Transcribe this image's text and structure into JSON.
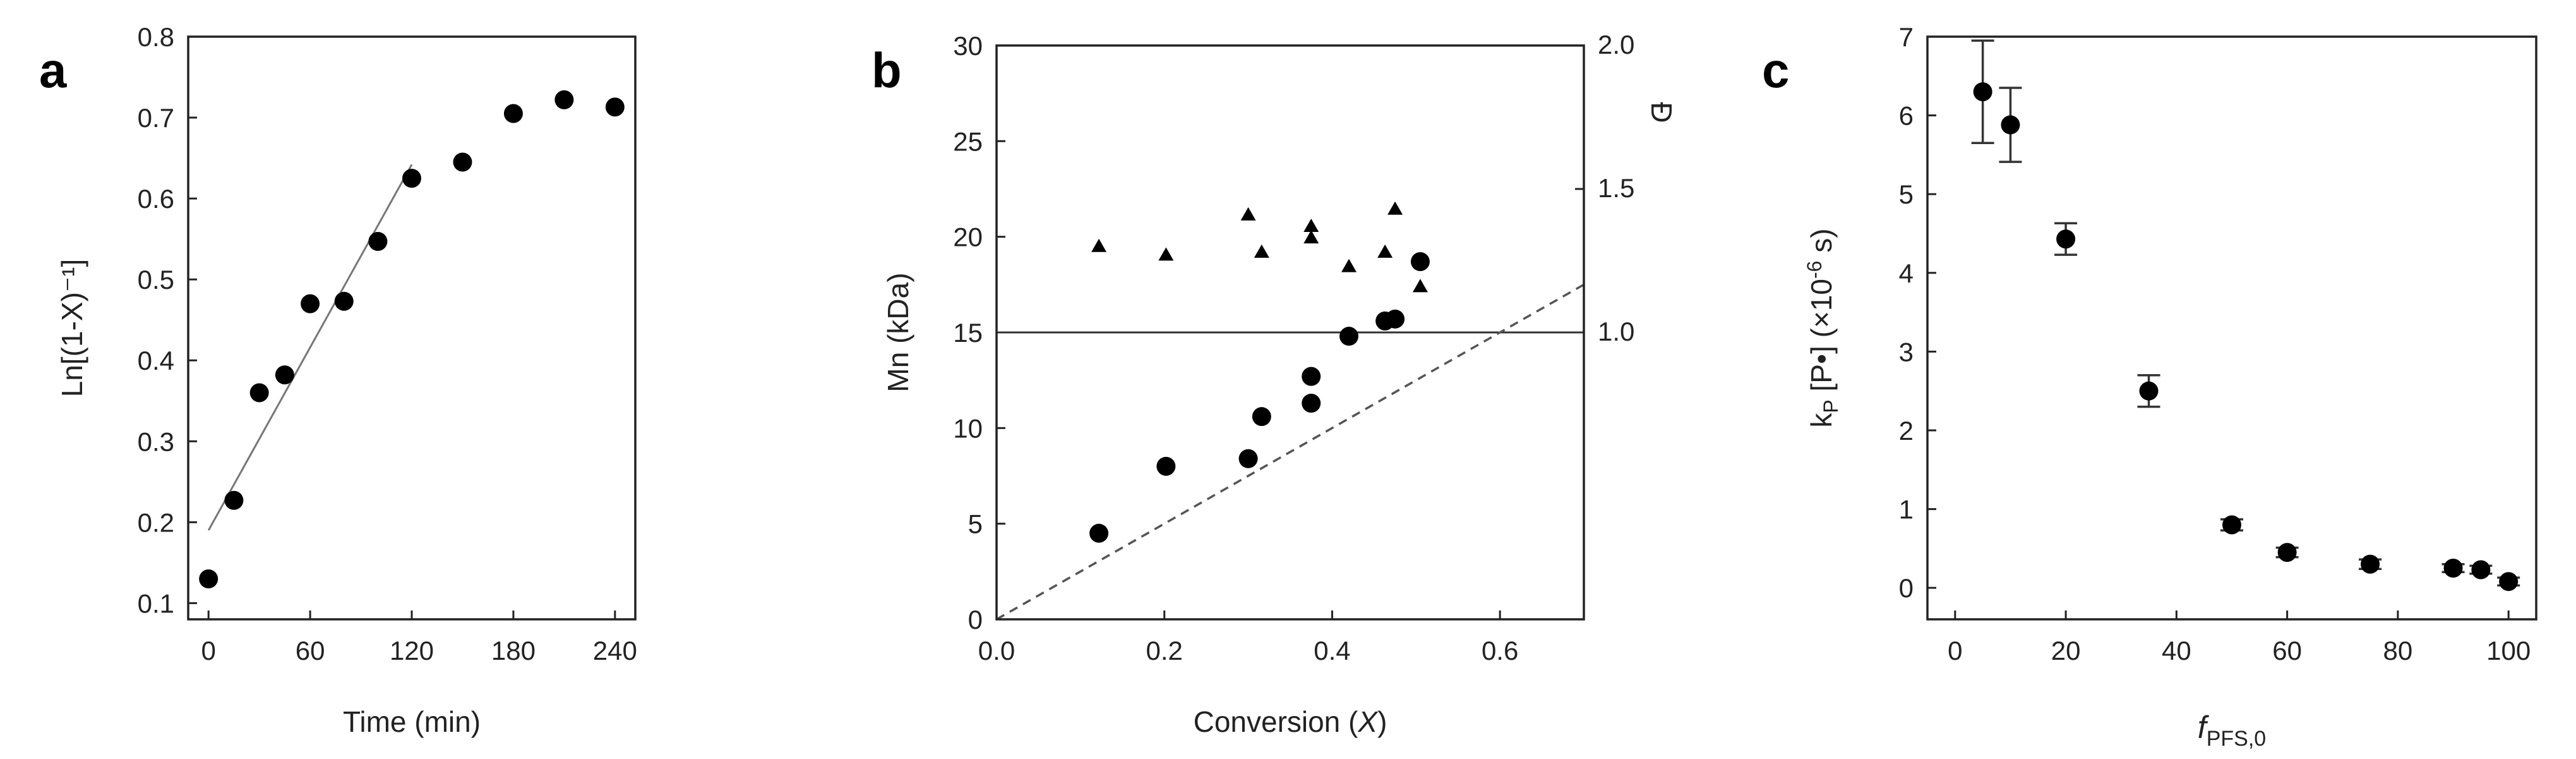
{
  "chart_data": [
    {
      "panel": "a",
      "type": "scatter",
      "xlabel": "Time (min)",
      "ylabel": "Ln[(1-X)⁻¹]",
      "xlim": [
        -12,
        252
      ],
      "ylim": [
        0.08,
        0.8
      ],
      "xticks": [
        "0",
        "60",
        "120",
        "180",
        "240"
      ],
      "yticks": [
        "0.1",
        "0.2",
        "0.3",
        "0.4",
        "0.5",
        "0.6",
        "0.7",
        "0.8"
      ],
      "grid": false,
      "series": [
        {
          "x": [
            0,
            15,
            30,
            45,
            60,
            80,
            100,
            120,
            150,
            180,
            210,
            240
          ],
          "y": [
            0.13,
            0.227,
            0.36,
            0.382,
            0.47,
            0.473,
            0.547,
            0.625,
            0.645,
            0.705,
            0.722,
            0.713
          ]
        }
      ],
      "fit_line": {
        "x": [
          0,
          120
        ],
        "y": [
          0.19,
          0.642
        ]
      }
    },
    {
      "panel": "b",
      "type": "scatter",
      "xlabel": "Conversion (X)",
      "ylabel": "Mn (kDa)",
      "y2label": "Ð",
      "xlim": [
        0.0,
        0.7
      ],
      "ylim": [
        0,
        30
      ],
      "y2lim": [
        0.0,
        2.0
      ],
      "y2_visible_range": [
        1.0,
        2.0
      ],
      "xticks": [
        "0.0",
        "0.2",
        "0.4",
        "0.6"
      ],
      "yticks": [
        "0",
        "5",
        "10",
        "15",
        "20",
        "25",
        "30"
      ],
      "y2ticks": [
        "1.0",
        "1.5",
        "2.0"
      ],
      "grid": false,
      "series": [
        {
          "marker": "circle",
          "axis": "left",
          "x": [
            0.122,
            0.202,
            0.3,
            0.316,
            0.375,
            0.375,
            0.42,
            0.463,
            0.475,
            0.505
          ],
          "y": [
            4.5,
            8.0,
            8.4,
            10.6,
            11.3,
            12.7,
            14.8,
            15.6,
            15.7,
            18.7
          ]
        },
        {
          "marker": "triangle",
          "axis": "right",
          "x": [
            0.122,
            0.202,
            0.3,
            0.316,
            0.375,
            0.375,
            0.42,
            0.463,
            0.475,
            0.505
          ],
          "y": [
            1.3,
            1.27,
            1.41,
            1.28,
            1.37,
            1.33,
            1.23,
            1.28,
            1.43,
            1.16
          ]
        }
      ],
      "reference_hline": {
        "axis": "right",
        "y": 1.0
      },
      "theory_line": {
        "x": [
          0.0,
          0.7
        ],
        "y": [
          0,
          17.5
        ],
        "style": "dashed"
      }
    },
    {
      "panel": "c",
      "type": "scatter",
      "xlabel": "f",
      "xlabel_sub": "PFS,0",
      "ylabel_pre": "k",
      "ylabel_sub": "P",
      "ylabel_mid": " [P•]  (×10",
      "ylabel_sup": "-6",
      "ylabel_post": " s)",
      "xlim": [
        -5,
        105
      ],
      "ylim": [
        -0.4,
        7
      ],
      "xticks": [
        "0",
        "20",
        "40",
        "60",
        "80",
        "100"
      ],
      "yticks": [
        "0",
        "1",
        "2",
        "3",
        "4",
        "5",
        "6",
        "7"
      ],
      "grid": false,
      "series": [
        {
          "x": [
            5,
            10,
            20,
            35,
            50,
            60,
            75,
            90,
            95,
            100
          ],
          "y": [
            6.3,
            5.88,
            4.43,
            2.5,
            0.8,
            0.45,
            0.3,
            0.25,
            0.23,
            0.08
          ],
          "err": [
            0.65,
            0.47,
            0.2,
            0.2,
            0.07,
            0.06,
            0.06,
            0.05,
            0.05,
            0.05
          ]
        }
      ]
    }
  ],
  "panel_labels": [
    "a",
    "b",
    "c"
  ]
}
